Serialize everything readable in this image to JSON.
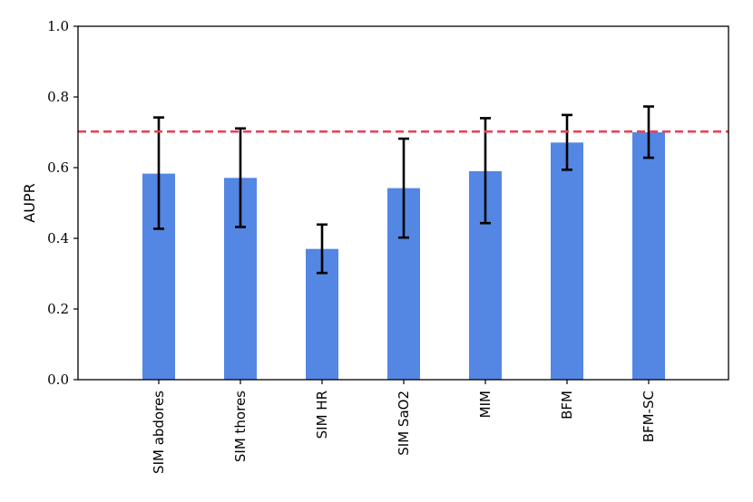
{
  "chart_data": {
    "type": "bar",
    "title": "",
    "xlabel": "",
    "ylabel": "AUPR",
    "ylim": [
      0.0,
      1.0
    ],
    "yticks": [
      "0.0",
      "0.2",
      "0.4",
      "0.6",
      "0.8",
      "1.0"
    ],
    "categories": [
      "SIM abdores",
      "SIM thores",
      "SIM HR",
      "SIM SaO2",
      "MIM",
      "BFM",
      "BFM-SC"
    ],
    "values": [
      0.583,
      0.571,
      0.37,
      0.542,
      0.59,
      0.671,
      0.7
    ],
    "error_low": [
      0.427,
      0.432,
      0.302,
      0.402,
      0.443,
      0.594,
      0.628
    ],
    "error_high": [
      0.742,
      0.711,
      0.439,
      0.682,
      0.74,
      0.749,
      0.773
    ],
    "reference_line": 0.702,
    "colors": {
      "bar": "#5486e3",
      "error_bar": "#000000",
      "reference_line": "#e8415a"
    },
    "grid": false,
    "legend": "none"
  }
}
